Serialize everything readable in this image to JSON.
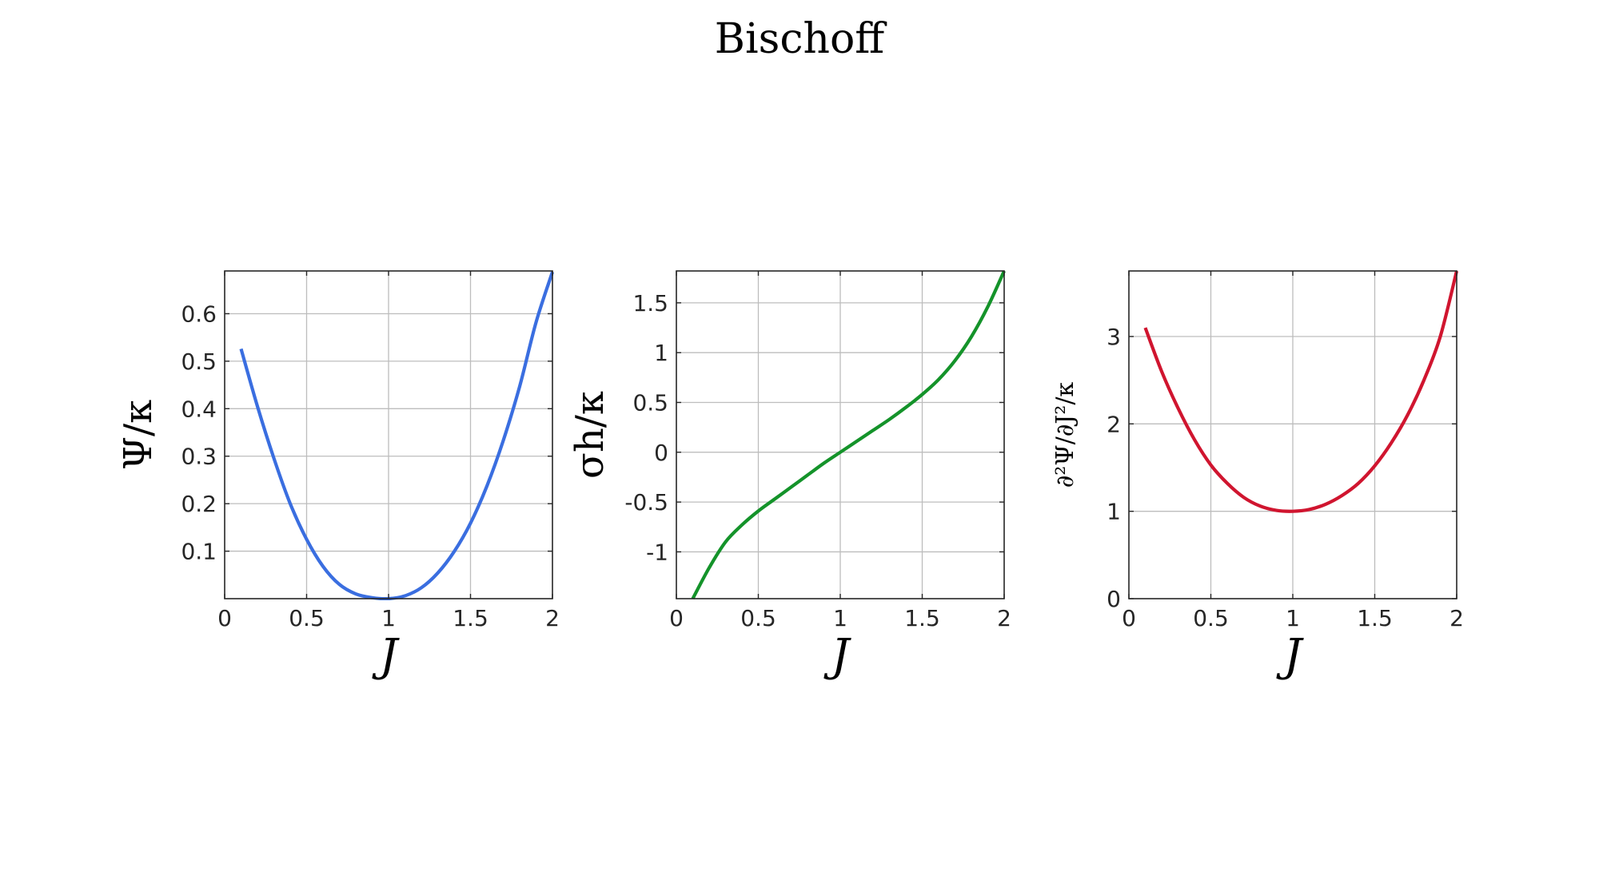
{
  "figure": {
    "title": "Bischoff"
  },
  "chart_data": [
    {
      "type": "line",
      "title": "",
      "xlabel": "J",
      "ylabel": "Ψ/κ",
      "xlim": [
        0,
        2
      ],
      "ylim": [
        0,
        0.69
      ],
      "xticks": [
        0,
        0.5,
        1,
        1.5,
        2
      ],
      "xtick_labels": [
        "0",
        "0.5",
        "1",
        "1.5",
        "2"
      ],
      "yticks": [
        0.1,
        0.2,
        0.3,
        0.4,
        0.5,
        0.6
      ],
      "ytick_labels": [
        "0.1",
        "0.2",
        "0.3",
        "0.4",
        "0.5",
        "0.6"
      ],
      "grid": true,
      "series": [
        {
          "color": "#3a6ee0",
          "x": [
            0.1,
            0.2,
            0.3,
            0.4,
            0.5,
            0.6,
            0.7,
            0.8,
            0.9,
            1.0,
            1.1,
            1.2,
            1.3,
            1.4,
            1.5,
            1.6,
            1.7,
            1.8,
            1.9,
            2.0
          ],
          "y": [
            0.526,
            0.405,
            0.296,
            0.2,
            0.125,
            0.068,
            0.03,
            0.01,
            0.002,
            0.0,
            0.006,
            0.023,
            0.054,
            0.099,
            0.159,
            0.237,
            0.333,
            0.447,
            0.582,
            0.688
          ]
        }
      ]
    },
    {
      "type": "line",
      "title": "",
      "xlabel": "J",
      "ylabel": "σh/κ",
      "xlim": [
        0,
        2
      ],
      "ylim": [
        -1.47,
        1.82
      ],
      "xticks": [
        0,
        0.5,
        1,
        1.5,
        2
      ],
      "xtick_labels": [
        "0",
        "0.5",
        "1",
        "1.5",
        "2"
      ],
      "yticks": [
        -1,
        -0.5,
        0,
        0.5,
        1,
        1.5
      ],
      "ytick_labels": [
        "-1",
        "-0.5",
        "0",
        "0.5",
        "1",
        "1.5"
      ],
      "grid": true,
      "series": [
        {
          "color": "#14932a",
          "x": [
            0.1,
            0.2,
            0.3,
            0.4,
            0.5,
            0.6,
            0.7,
            0.8,
            0.9,
            1.0,
            1.1,
            1.2,
            1.3,
            1.4,
            1.5,
            1.6,
            1.7,
            1.8,
            1.9,
            2.0
          ],
          "y": [
            -1.47,
            -1.16,
            -0.9,
            -0.73,
            -0.59,
            -0.47,
            -0.35,
            -0.23,
            -0.11,
            0.0,
            0.11,
            0.22,
            0.33,
            0.45,
            0.58,
            0.73,
            0.92,
            1.16,
            1.46,
            1.82
          ]
        }
      ]
    },
    {
      "type": "line",
      "title": "",
      "xlabel": "J",
      "ylabel": "∂²Ψ/∂J²/κ",
      "xlim": [
        0,
        2
      ],
      "ylim": [
        0,
        3.75
      ],
      "xticks": [
        0,
        0.5,
        1,
        1.5,
        2
      ],
      "xtick_labels": [
        "0",
        "0.5",
        "1",
        "1.5",
        "2"
      ],
      "yticks": [
        0,
        1,
        2,
        3
      ],
      "ytick_labels": [
        "0",
        "1",
        "2",
        "3"
      ],
      "grid": true,
      "series": [
        {
          "color": "#d0152f",
          "x": [
            0.1,
            0.2,
            0.3,
            0.4,
            0.5,
            0.6,
            0.7,
            0.8,
            0.9,
            1.0,
            1.1,
            1.2,
            1.3,
            1.4,
            1.5,
            1.6,
            1.7,
            1.8,
            1.9,
            2.0
          ],
          "y": [
            3.1,
            2.6,
            2.18,
            1.82,
            1.53,
            1.32,
            1.16,
            1.06,
            1.01,
            1.0,
            1.02,
            1.08,
            1.18,
            1.32,
            1.52,
            1.78,
            2.1,
            2.5,
            3.0,
            3.75
          ]
        }
      ]
    }
  ]
}
